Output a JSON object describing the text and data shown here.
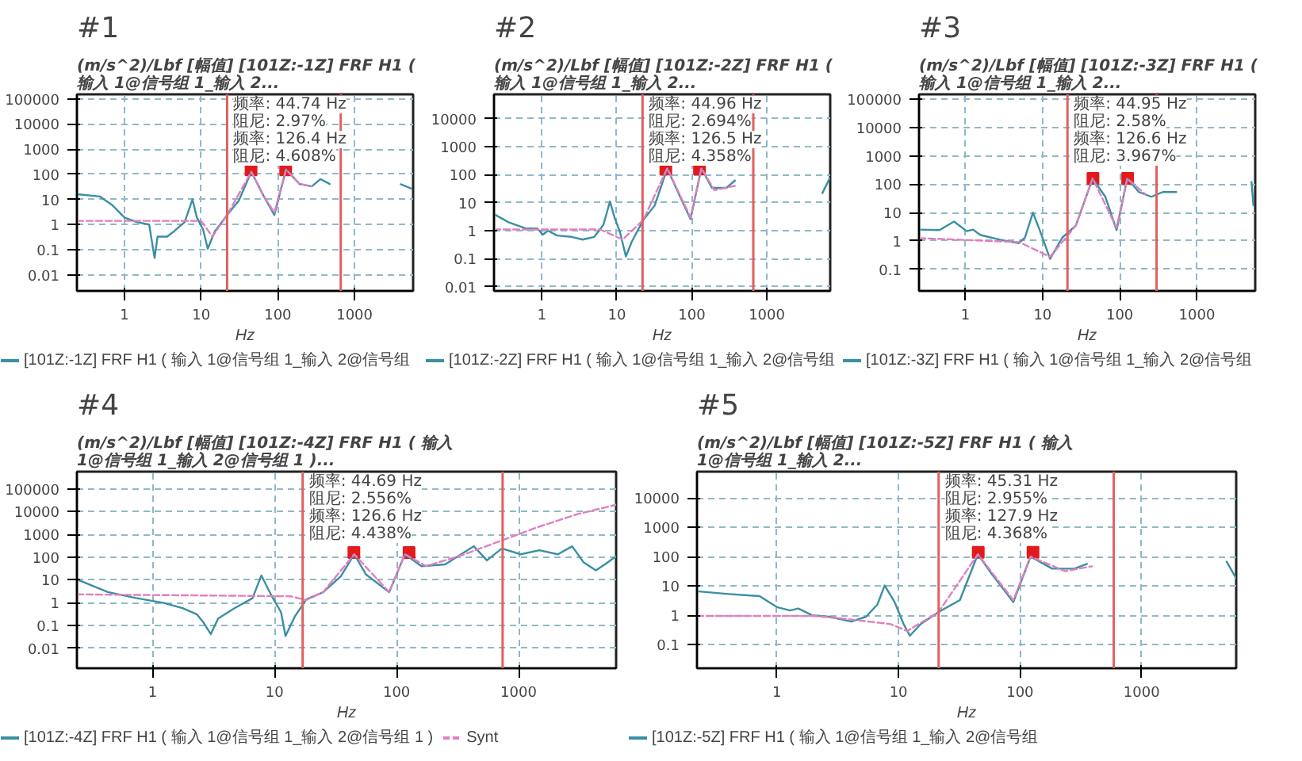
{
  "chart_data": [
    {
      "type": "line",
      "title": "#1",
      "subtitle": "(m/s^2)/Lbf [幅值] [101Z:-1Z] FRF H1 ( 输入 1@信号组 1_输入 2...",
      "xlabel": "Hz",
      "log": "xy",
      "grid": true,
      "legend": "bottom",
      "xlim": [
        0.24,
        5800
      ],
      "ylim": [
        0.0023,
        150000
      ],
      "xticks": [
        1,
        10,
        100,
        1000
      ],
      "yticks": [
        0.01,
        0.1,
        1,
        10,
        100,
        1000,
        10000,
        100000
      ],
      "series": [
        {
          "name": "[101Z:-1Z] FRF H1 ( 输入 1@信号组 1_输入 2@信号组",
          "color": "#3a8fa3",
          "line_style": "solid",
          "x": [
            0.24,
            0.48,
            0.7,
            1,
            1.44,
            2.1,
            2.47,
            2.7,
            3.6,
            4.3,
            6.1,
            7.7,
            8.8,
            10.6,
            12.2,
            15,
            21.8,
            31,
            45,
            65,
            90,
            128,
            192,
            277,
            360,
            475,
            1000,
            4000,
            5500
          ],
          "values": [
            16,
            13,
            5.8,
            1.9,
            1.25,
            1,
            0.047,
            0.33,
            0.33,
            0.5,
            1.25,
            10,
            1.9,
            0.64,
            0.11,
            0.52,
            2.4,
            9,
            125,
            14,
            2.4,
            155,
            41,
            33,
            64,
            41,
            null,
            40,
            27
          ]
        },
        {
          "color": "#e07fc0",
          "line_style": "dashed",
          "x": [
            0.24,
            10,
            14,
            21.8,
            45,
            65,
            90,
            128,
            192,
            277
          ],
          "values": [
            1.4,
            1.4,
            0.33,
            2.4,
            125,
            14,
            3,
            155,
            41,
            33
          ]
        },
        {
          "type": "scatter",
          "marker": "square",
          "color": "#e31a1c",
          "x": [
            44.74,
            126.4
          ],
          "values": [
            150,
            150
          ]
        }
      ],
      "ref_lines": [
        {
          "axis": "x",
          "value": 21.8,
          "color": "#e06060"
        },
        {
          "axis": "x",
          "value": 660,
          "color": "#e06060"
        }
      ],
      "annotations": [
        "频率: 44.74 Hz",
        "阻尼: 2.97%",
        "频率: 126.4 Hz",
        "阻尼: 4.608%"
      ]
    },
    {
      "type": "line",
      "title": "#2",
      "subtitle": "(m/s^2)/Lbf [幅值] [101Z:-2Z] FRF H1 ( 输入 1@信号组 1_输入 2...",
      "xlabel": "Hz",
      "log": "xy",
      "grid": true,
      "legend": "bottom",
      "xlim": [
        0.23,
        7000
      ],
      "ylim": [
        0.007,
        75000
      ],
      "xticks": [
        1,
        10,
        100,
        1000
      ],
      "yticks": [
        0.01,
        0.1,
        1,
        10,
        100,
        1000,
        10000
      ],
      "series": [
        {
          "name": "[101Z:-2Z] FRF H1 ( 输入 1@信号组 1_输入 2@信号组",
          "color": "#3a8fa3",
          "line_style": "solid",
          "x": [
            0.23,
            0.36,
            0.61,
            0.87,
            1.03,
            1.2,
            1.6,
            2.5,
            3.5,
            5,
            6.6,
            8.1,
            9.3,
            11,
            13.2,
            15.8,
            22.5,
            32,
            47,
            64,
            96,
            134,
            185,
            290,
            375,
            1000,
            5500,
            6900
          ],
          "values": [
            3.9,
            2,
            1.2,
            1.2,
            0.72,
            1,
            0.67,
            0.6,
            0.48,
            0.6,
            1.6,
            11,
            3,
            0.89,
            0.12,
            0.4,
            2.4,
            8,
            170,
            27,
            2.6,
            170,
            34,
            34,
            62,
            null,
            22,
            75
          ]
        },
        {
          "color": "#e07fc0",
          "line_style": "dashed",
          "x": [
            0.23,
            6,
            12,
            22.5,
            47,
            96,
            134,
            200,
            375
          ],
          "values": [
            1.1,
            1.1,
            0.48,
            2.4,
            170,
            3,
            170,
            28,
            40
          ]
        },
        {
          "type": "scatter",
          "marker": "square",
          "color": "#e31a1c",
          "x": [
            44.96,
            126.5
          ],
          "values": [
            160,
            160
          ]
        }
      ],
      "ref_lines": [
        {
          "axis": "x",
          "value": 22,
          "color": "#e06060"
        },
        {
          "axis": "x",
          "value": 660,
          "color": "#e06060"
        }
      ],
      "annotations": [
        "频率: 44.96 Hz",
        "阻尼: 2.694%",
        "频率: 126.5 Hz",
        "阻尼: 4.358%"
      ]
    },
    {
      "type": "line",
      "title": "#3",
      "subtitle": "(m/s^2)/Lbf [幅值] [101Z:-3Z] FRF H1 ( 输入 1@信号组 1_输入 2...",
      "xlabel": "Hz",
      "log": "xy",
      "grid": true,
      "legend": "bottom",
      "xlim": [
        0.25,
        5700
      ],
      "ylim": [
        0.017,
        150000
      ],
      "xticks": [
        1,
        10,
        100,
        1000
      ],
      "yticks": [
        0.1,
        1,
        10,
        100,
        1000,
        10000,
        100000
      ],
      "series": [
        {
          "name": "[101Z:-3Z] FRF H1 ( 输入 1@信号组 1_输入 2@信号组",
          "color": "#3a8fa3",
          "line_style": "solid",
          "x": [
            0.25,
            0.46,
            0.71,
            1.04,
            1.25,
            1.57,
            2.8,
            4.9,
            5.9,
            7.5,
            9.4,
            12.5,
            18,
            27,
            44.5,
            65,
            91,
            125,
            177,
            257,
            360,
            540,
            1000,
            5100,
            5400
          ],
          "values": [
            2.5,
            2.4,
            4.8,
            2.2,
            2.5,
            1.6,
            1.1,
            0.82,
            1.3,
            10,
            2,
            0.23,
            1.3,
            3.5,
            160,
            36,
            2.4,
            160,
            53,
            36,
            53,
            53,
            null,
            120,
            18
          ]
        },
        {
          "color": "#e07fc0",
          "line_style": "dashed",
          "x": [
            0.25,
            5,
            12.5,
            27,
            44.5,
            91,
            125,
            215
          ],
          "values": [
            1.25,
            0.9,
            0.27,
            3.5,
            160,
            2.9,
            160,
            44
          ]
        },
        {
          "type": "scatter",
          "marker": "square",
          "color": "#e31a1c",
          "x": [
            44.95,
            126.6
          ],
          "values": [
            160,
            160
          ]
        }
      ],
      "ref_lines": [
        {
          "axis": "x",
          "value": 21,
          "color": "#e06060"
        },
        {
          "axis": "x",
          "value": 300,
          "color": "#e06060"
        }
      ],
      "annotations": [
        "频率: 44.95 Hz",
        "阻尼: 2.58%",
        "频率: 126.6 Hz",
        "阻尼: 3.967%"
      ]
    },
    {
      "type": "line",
      "title": "#4",
      "subtitle": "(m/s^2)/Lbf [幅值] [101Z:-4Z] FRF H1 ( 输入 1@信号组 1_输入 2@信号组 1 )...",
      "xlabel": "Hz",
      "log": "xy",
      "grid": true,
      "legend": "bottom",
      "xlim": [
        0.24,
        6300
      ],
      "ylim": [
        0.0013,
        570000
      ],
      "xticks": [
        1,
        10,
        100,
        1000
      ],
      "yticks": [
        0.01,
        0.1,
        1,
        10,
        100,
        1000,
        10000,
        100000
      ],
      "series": [
        {
          "name": "[101Z:-4Z] FRF H1 ( 输入 1@信号组 1_输入 2@信号组 1 )",
          "color": "#3a8fa3",
          "line_style": "solid",
          "x": [
            0.24,
            0.43,
            0.73,
            1.24,
            1.76,
            2.3,
            2.6,
            3,
            3.45,
            4.7,
            6.6,
            7.8,
            9.5,
            11.3,
            12.3,
            14.7,
            18.2,
            25,
            35,
            45,
            56,
            87,
            117,
            160,
            250,
            430,
            550,
            730,
            1040,
            1480,
            2100,
            2750,
            3400,
            4300,
            5100,
            6300
          ],
          "values": [
            10.5,
            2.9,
            1.6,
            0.96,
            0.57,
            0.31,
            0.14,
            0.041,
            0.2,
            0.57,
            1.56,
            15.6,
            1.9,
            0.38,
            0.034,
            0.25,
            1.38,
            2.86,
            14.4,
            133,
            17.6,
            2.86,
            133,
            40,
            48,
            300,
            72,
            240,
            133,
            200,
            133,
            300,
            60,
            26,
            48,
            108
          ]
        },
        {
          "name": "Synt",
          "color": "#e07fc0",
          "line_style": "dashed",
          "x": [
            0.24,
            13.5,
            18.2,
            25,
            45,
            87,
            117,
            175,
            360,
            730,
            1480,
            3000,
            6300
          ],
          "values": [
            2.3,
            1.9,
            1.3,
            2.9,
            133,
            2.9,
            133,
            40,
            133,
            540,
            2200,
            7600,
            20000
          ]
        },
        {
          "type": "scatter",
          "marker": "square",
          "color": "#e31a1c",
          "x": [
            44.69,
            126.6
          ],
          "values": [
            160,
            160
          ]
        }
      ],
      "ref_lines": [
        {
          "axis": "x",
          "value": 17,
          "color": "#e06060"
        },
        {
          "axis": "x",
          "value": 740,
          "color": "#e06060"
        }
      ],
      "annotations": [
        "频率: 44.69 Hz",
        "阻尼: 2.556%",
        "频率: 126.6 Hz",
        "阻尼: 4.438%"
      ]
    },
    {
      "type": "line",
      "title": "#5",
      "subtitle": "(m/s^2)/Lbf [幅值] [101Z:-5Z] FRF H1 ( 输入 1@信号组 1_输入 2...",
      "xlabel": "Hz",
      "log": "xy",
      "grid": true,
      "legend": "bottom",
      "xlim": [
        0.22,
        6000
      ],
      "ylim": [
        0.0155,
        80000
      ],
      "xticks": [
        1,
        10,
        100,
        1000
      ],
      "yticks": [
        0.1,
        1,
        10,
        100,
        1000,
        10000
      ],
      "series": [
        {
          "name": "[101Z:-5Z] FRF H1 ( 输入 1@信号组 1_输入 2@信号组",
          "color": "#3a8fa3",
          "line_style": "solid",
          "x": [
            0.22,
            0.4,
            0.72,
            1,
            1.28,
            1.5,
            1.94,
            2.7,
            4.1,
            5.4,
            6.7,
            7.7,
            9.3,
            11,
            12.4,
            15.3,
            21.4,
            32,
            45,
            58,
            88,
            122,
            184,
            280,
            355,
            1000,
            5000,
            6000
          ],
          "values": [
            6.6,
            5.3,
            4.5,
            1.9,
            1.46,
            1.7,
            1,
            0.89,
            0.61,
            0.89,
            2.3,
            10.4,
            2.8,
            0.51,
            0.2,
            0.51,
            1.3,
            3.3,
            121,
            27,
            2.8,
            100,
            39,
            39,
            57,
            null,
            68,
            18
          ]
        },
        {
          "color": "#e07fc0",
          "line_style": "dashed",
          "x": [
            0.22,
            2,
            3.8,
            8.6,
            11.8,
            21.4,
            45,
            88,
            122,
            235,
            390
          ],
          "values": [
            0.95,
            0.95,
            0.74,
            0.5,
            0.29,
            1.3,
            121,
            3.3,
            100,
            32,
            47
          ]
        },
        {
          "type": "scatter",
          "marker": "square",
          "color": "#e31a1c",
          "x": [
            45.31,
            127.9
          ],
          "values": [
            140,
            140
          ]
        }
      ],
      "ref_lines": [
        {
          "axis": "x",
          "value": 21.4,
          "color": "#e06060"
        },
        {
          "axis": "x",
          "value": 590,
          "color": "#e06060"
        }
      ],
      "annotations": [
        "频率: 45.31 Hz",
        "阻尼: 2.955%",
        "频率: 127.9 Hz",
        "阻尼: 4.368%"
      ]
    }
  ]
}
